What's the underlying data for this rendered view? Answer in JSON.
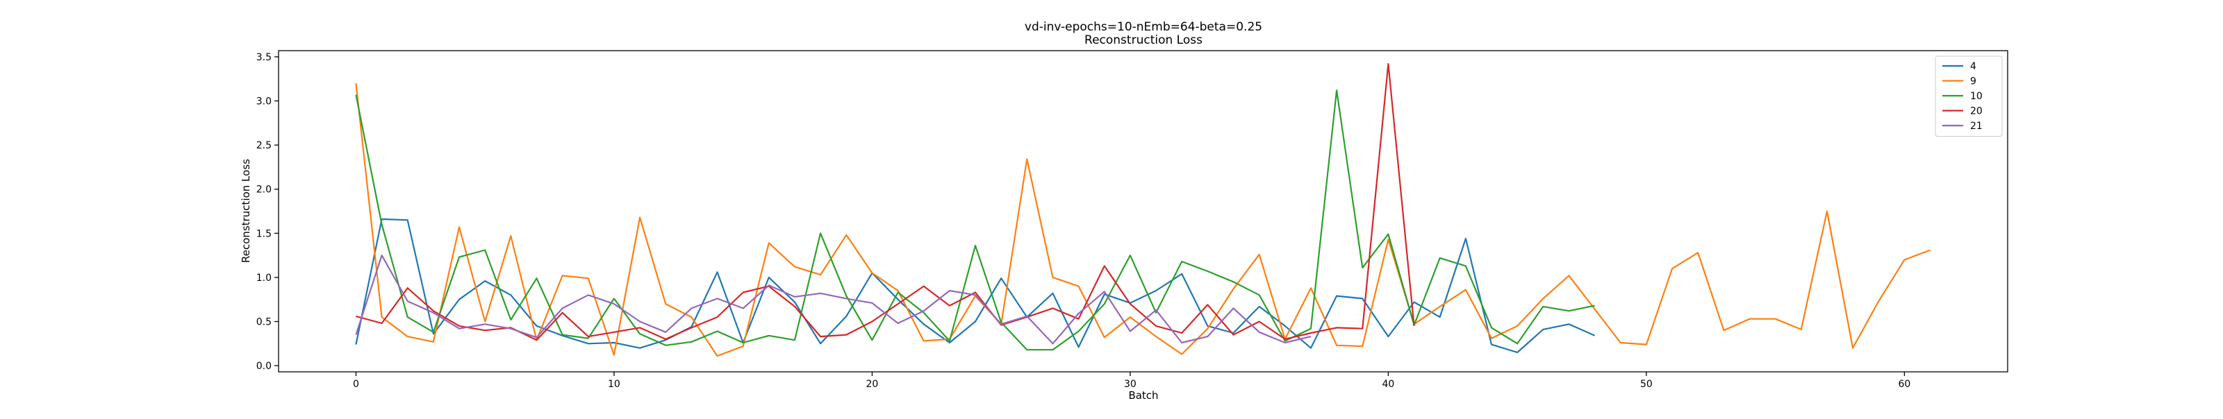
{
  "chart_data": {
    "type": "line",
    "title": "vd-inv-epochs=10-nEmb=64-beta=0.25",
    "subtitle": "Reconstruction Loss",
    "xlabel": "Batch",
    "ylabel": "Reconstruction Loss",
    "xlim": [
      -3,
      64
    ],
    "ylim": [
      -0.07,
      3.57
    ],
    "xticks": [
      0,
      10,
      20,
      30,
      40,
      50,
      60
    ],
    "yticks": [
      0.0,
      0.5,
      1.0,
      1.5,
      2.0,
      2.5,
      3.0,
      3.5
    ],
    "grid": false,
    "legend_position": "top-right",
    "series": [
      {
        "name": "4",
        "color": "#1f77b4",
        "values": [
          0.24,
          1.66,
          1.65,
          0.36,
          0.75,
          0.96,
          0.8,
          0.45,
          0.34,
          0.25,
          0.26,
          0.2,
          0.29,
          0.44,
          1.06,
          0.26,
          1.0,
          0.72,
          0.25,
          0.56,
          1.05,
          0.75,
          0.47,
          0.26,
          0.5,
          0.99,
          0.55,
          0.82,
          0.21,
          0.81,
          0.71,
          0.85,
          1.04,
          0.45,
          0.37,
          0.67,
          0.45,
          0.2,
          0.79,
          0.76,
          0.33,
          0.72,
          0.55,
          1.44,
          0.24,
          0.15,
          0.41,
          0.47,
          0.34
        ]
      },
      {
        "name": "9",
        "color": "#ff7f0e",
        "values": [
          3.2,
          0.55,
          0.33,
          0.27,
          1.57,
          0.5,
          1.47,
          0.29,
          1.02,
          0.99,
          0.12,
          1.68,
          0.7,
          0.55,
          0.11,
          0.22,
          1.39,
          1.12,
          1.03,
          1.48,
          1.05,
          0.85,
          0.28,
          0.3,
          0.79,
          0.47,
          2.34,
          1.0,
          0.9,
          0.32,
          0.55,
          0.33,
          0.13,
          0.42,
          0.87,
          1.26,
          0.3,
          0.88,
          0.23,
          0.22,
          1.43,
          0.47,
          0.67,
          0.86,
          0.31,
          0.45,
          0.76,
          1.02,
          0.64,
          0.26,
          0.24,
          1.1,
          1.28,
          0.4,
          0.53,
          0.53,
          0.41,
          1.75,
          0.2,
          0.73,
          1.2,
          1.31
        ]
      },
      {
        "name": "10",
        "color": "#2ca02c",
        "values": [
          3.07,
          1.6,
          0.55,
          0.38,
          1.23,
          1.31,
          0.52,
          0.99,
          0.35,
          0.31,
          0.76,
          0.36,
          0.23,
          0.27,
          0.39,
          0.26,
          0.34,
          0.29,
          1.5,
          0.79,
          0.29,
          0.83,
          0.6,
          0.28,
          1.36,
          0.49,
          0.18,
          0.18,
          0.39,
          0.7,
          1.25,
          0.6,
          1.18,
          1.07,
          0.95,
          0.8,
          0.28,
          0.42,
          3.12,
          1.11,
          1.49,
          0.46,
          1.22,
          1.13,
          0.43,
          0.25,
          0.67,
          0.62,
          0.68
        ]
      },
      {
        "name": "20",
        "color": "#d62728",
        "values": [
          0.56,
          0.48,
          0.88,
          0.62,
          0.45,
          0.4,
          0.43,
          0.29,
          0.6,
          0.33,
          0.38,
          0.43,
          0.3,
          0.43,
          0.55,
          0.83,
          0.9,
          0.67,
          0.33,
          0.35,
          0.5,
          0.7,
          0.9,
          0.68,
          0.83,
          0.46,
          0.55,
          0.65,
          0.53,
          1.13,
          0.7,
          0.45,
          0.37,
          0.69,
          0.35,
          0.5,
          0.3,
          0.37,
          0.43,
          0.42,
          3.42,
          0.45
        ]
      },
      {
        "name": "21",
        "color": "#9467bd",
        "values": [
          0.35,
          1.25,
          0.73,
          0.6,
          0.42,
          0.47,
          0.42,
          0.32,
          0.65,
          0.8,
          0.7,
          0.5,
          0.38,
          0.65,
          0.76,
          0.65,
          0.91,
          0.78,
          0.82,
          0.76,
          0.71,
          0.48,
          0.62,
          0.85,
          0.8,
          0.47,
          0.56,
          0.25,
          0.59,
          0.84,
          0.39,
          0.63,
          0.26,
          0.33,
          0.65,
          0.38,
          0.26,
          0.33
        ]
      }
    ]
  }
}
